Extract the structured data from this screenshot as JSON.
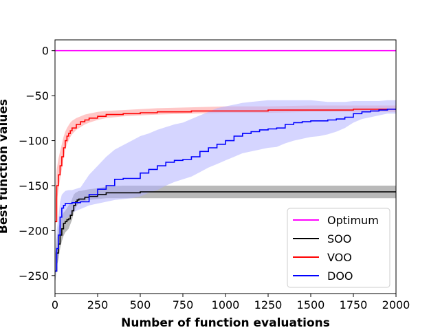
{
  "chart_data": {
    "type": "line",
    "title": "",
    "xlabel": "Number of function evaluations",
    "ylabel": "Best function values",
    "xlim": [
      0,
      2000
    ],
    "ylim": [
      -270,
      12
    ],
    "x_ticks": [
      0,
      250,
      500,
      750,
      1000,
      1250,
      1500,
      1750,
      2000
    ],
    "x_tick_labels": [
      "0",
      "250",
      "500",
      "750",
      "1000",
      "1250",
      "1500",
      "1750",
      "2000"
    ],
    "y_ticks": [
      0,
      -50,
      -100,
      -150,
      -200,
      -250
    ],
    "y_tick_labels": [
      "0",
      "−50",
      "−100",
      "−150",
      "−200",
      "−250"
    ],
    "grid": false,
    "legend_position": "bottom-right",
    "series": [
      {
        "name": "Optimum",
        "color": "#ff00ff",
        "x": [
          0,
          2000
        ],
        "y": [
          0,
          0
        ]
      },
      {
        "name": "SOO",
        "color": "#000000",
        "band_color": "#7f7f7f",
        "x": [
          0,
          10,
          20,
          30,
          40,
          50,
          60,
          70,
          80,
          90,
          100,
          110,
          120,
          130,
          140,
          150,
          175,
          200,
          250,
          300,
          400,
          500,
          600,
          800,
          1000,
          1200,
          1500,
          1750,
          2000
        ],
        "y": [
          -245,
          -225,
          -215,
          -205,
          -198,
          -192,
          -190,
          -188,
          -187,
          -183,
          -178,
          -172,
          -168,
          -166,
          -165,
          -165,
          -163,
          -162,
          -160,
          -158,
          -158,
          -157,
          -157,
          -157,
          -157,
          -157,
          -157,
          -157,
          -157
        ],
        "lower": [
          -260,
          -240,
          -232,
          -220,
          -212,
          -206,
          -202,
          -200,
          -198,
          -193,
          -188,
          -180,
          -175,
          -172,
          -170,
          -169,
          -167,
          -166,
          -165,
          -164,
          -164,
          -164,
          -164,
          -164,
          -164,
          -164,
          -164,
          -164,
          -164
        ],
        "upper": [
          -230,
          -210,
          -198,
          -190,
          -185,
          -180,
          -178,
          -175,
          -172,
          -170,
          -165,
          -160,
          -158,
          -157,
          -156,
          -156,
          -155,
          -154,
          -153,
          -151,
          -150,
          -150,
          -150,
          -150,
          -150,
          -150,
          -150,
          -150,
          -150
        ]
      },
      {
        "name": "VOO",
        "color": "#ff0000",
        "band_color": "#ff9999",
        "x": [
          0,
          10,
          20,
          30,
          40,
          50,
          60,
          70,
          80,
          90,
          100,
          125,
          150,
          175,
          200,
          250,
          300,
          400,
          500,
          600,
          800,
          1000,
          1250,
          1500,
          1750,
          2000
        ],
        "y": [
          -190,
          -150,
          -138,
          -128,
          -118,
          -108,
          -100,
          -95,
          -92,
          -89,
          -86,
          -82,
          -79,
          -77,
          -75,
          -73,
          -71,
          -70,
          -69,
          -68,
          -67,
          -67,
          -66,
          -66,
          -65,
          -65
        ],
        "lower": [
          -205,
          -168,
          -155,
          -143,
          -132,
          -120,
          -110,
          -104,
          -100,
          -96,
          -93,
          -88,
          -85,
          -82,
          -80,
          -77,
          -75,
          -73,
          -72,
          -71,
          -70,
          -69,
          -69,
          -68,
          -68,
          -68
        ],
        "upper": [
          -175,
          -132,
          -120,
          -112,
          -104,
          -96,
          -90,
          -86,
          -83,
          -80,
          -78,
          -75,
          -73,
          -71,
          -70,
          -68,
          -67,
          -66,
          -65,
          -64,
          -63,
          -62,
          -62,
          -61,
          -61,
          -61
        ]
      },
      {
        "name": "DOO",
        "color": "#0000ff",
        "band_color": "#b3b3ff",
        "x": [
          0,
          10,
          20,
          30,
          40,
          50,
          60,
          80,
          100,
          150,
          200,
          250,
          300,
          350,
          400,
          450,
          500,
          550,
          600,
          650,
          700,
          750,
          800,
          850,
          900,
          950,
          1000,
          1050,
          1100,
          1150,
          1200,
          1250,
          1300,
          1350,
          1400,
          1450,
          1500,
          1550,
          1600,
          1650,
          1700,
          1750,
          1800,
          1850,
          1900,
          1950,
          2000
        ],
        "y": [
          -245,
          -220,
          -205,
          -185,
          -175,
          -172,
          -170,
          -170,
          -169,
          -168,
          -160,
          -154,
          -150,
          -143,
          -142,
          -142,
          -136,
          -132,
          -128,
          -124,
          -122,
          -121,
          -118,
          -112,
          -108,
          -104,
          -100,
          -95,
          -92,
          -90,
          -88,
          -87,
          -86,
          -82,
          -80,
          -79,
          -78,
          -78,
          -77,
          -76,
          -74,
          -70,
          -68,
          -67,
          -66,
          -65,
          -65
        ],
        "lower": [
          -255,
          -240,
          -225,
          -205,
          -195,
          -190,
          -186,
          -185,
          -180,
          -176,
          -172,
          -170,
          -168,
          -166,
          -165,
          -164,
          -162,
          -158,
          -155,
          -150,
          -146,
          -143,
          -140,
          -135,
          -130,
          -126,
          -122,
          -118,
          -114,
          -112,
          -110,
          -108,
          -107,
          -103,
          -100,
          -98,
          -96,
          -95,
          -93,
          -90,
          -86,
          -80,
          -76,
          -74,
          -72,
          -70,
          -70
        ],
        "upper": [
          -235,
          -200,
          -185,
          -168,
          -160,
          -158,
          -156,
          -155,
          -155,
          -152,
          -138,
          -128,
          -118,
          -110,
          -105,
          -100,
          -95,
          -92,
          -88,
          -85,
          -82,
          -80,
          -76,
          -72,
          -68,
          -64,
          -62,
          -60,
          -58,
          -57,
          -56,
          -55,
          -55,
          -55,
          -55,
          -55,
          -55,
          -56,
          -57,
          -57,
          -57,
          -56,
          -56,
          -56,
          -56,
          -55,
          -55
        ]
      }
    ]
  }
}
